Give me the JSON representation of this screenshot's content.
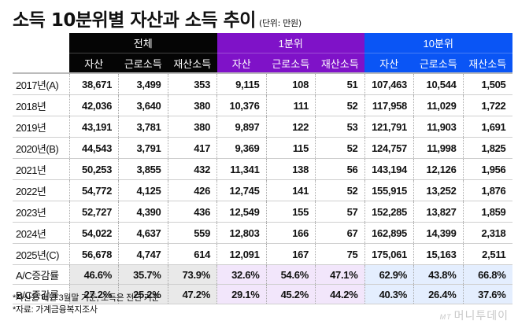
{
  "title": "소득 10분위별 자산과 소득 추이",
  "unit": "(단위: 만원)",
  "groups": [
    {
      "label": "전체",
      "color": "#050505"
    },
    {
      "label": "1분위",
      "color": "#7f12c8"
    },
    {
      "label": "10분위",
      "color": "#0a55f5"
    }
  ],
  "subheaders": [
    "자산",
    "근로소득",
    "재산소득",
    "자산",
    "근로소득",
    "재산소득",
    "자산",
    "근로소득",
    "재산소득"
  ],
  "rows": [
    {
      "label": "2017년(A)",
      "values": [
        "38,671",
        "3,499",
        "353",
        "9,115",
        "108",
        "51",
        "107,463",
        "10,544",
        "1,505"
      ]
    },
    {
      "label": "2018년",
      "values": [
        "42,036",
        "3,640",
        "380",
        "10,376",
        "111",
        "52",
        "117,958",
        "11,029",
        "1,722"
      ]
    },
    {
      "label": "2019년",
      "values": [
        "43,191",
        "3,781",
        "380",
        "9,897",
        "122",
        "53",
        "121,791",
        "11,903",
        "1,691"
      ]
    },
    {
      "label": "2020년(B)",
      "values": [
        "44,543",
        "3,791",
        "417",
        "9,369",
        "115",
        "52",
        "124,757",
        "11,998",
        "1,825"
      ]
    },
    {
      "label": "2021년",
      "values": [
        "50,253",
        "3,855",
        "432",
        "11,341",
        "138",
        "56",
        "143,194",
        "12,126",
        "1,956"
      ]
    },
    {
      "label": "2022년",
      "values": [
        "54,772",
        "4,125",
        "426",
        "12,745",
        "141",
        "52",
        "155,915",
        "13,252",
        "1,876"
      ]
    },
    {
      "label": "2023년",
      "values": [
        "52,727",
        "4,390",
        "436",
        "12,549",
        "155",
        "57",
        "152,285",
        "13,827",
        "1,859"
      ]
    },
    {
      "label": "2024년",
      "values": [
        "54,022",
        "4,637",
        "559",
        "12,803",
        "166",
        "67",
        "162,895",
        "14,399",
        "2,318"
      ]
    },
    {
      "label": "2025년(C)",
      "values": [
        "56,678",
        "4,747",
        "614",
        "12,091",
        "167",
        "75",
        "175,061",
        "15,163",
        "2,511"
      ]
    }
  ],
  "rates": [
    {
      "label": "A/C증감률",
      "values": [
        "46.6%",
        "35.7%",
        "73.9%",
        "32.6%",
        "54.6%",
        "47.1%",
        "62.9%",
        "43.8%",
        "66.8%"
      ]
    },
    {
      "label": "B/C증감률",
      "values": [
        "27.2%",
        "25.2%",
        "47.2%",
        "29.1%",
        "45.2%",
        "44.2%",
        "40.3%",
        "26.4%",
        "37.6%"
      ]
    }
  ],
  "notes": [
    "*자산은 매년 3월말 기준, 소득은 전년 기준",
    "*자료: 가계금융복지조사"
  ],
  "logo": {
    "mark": "MT",
    "text": "머니투데이"
  }
}
